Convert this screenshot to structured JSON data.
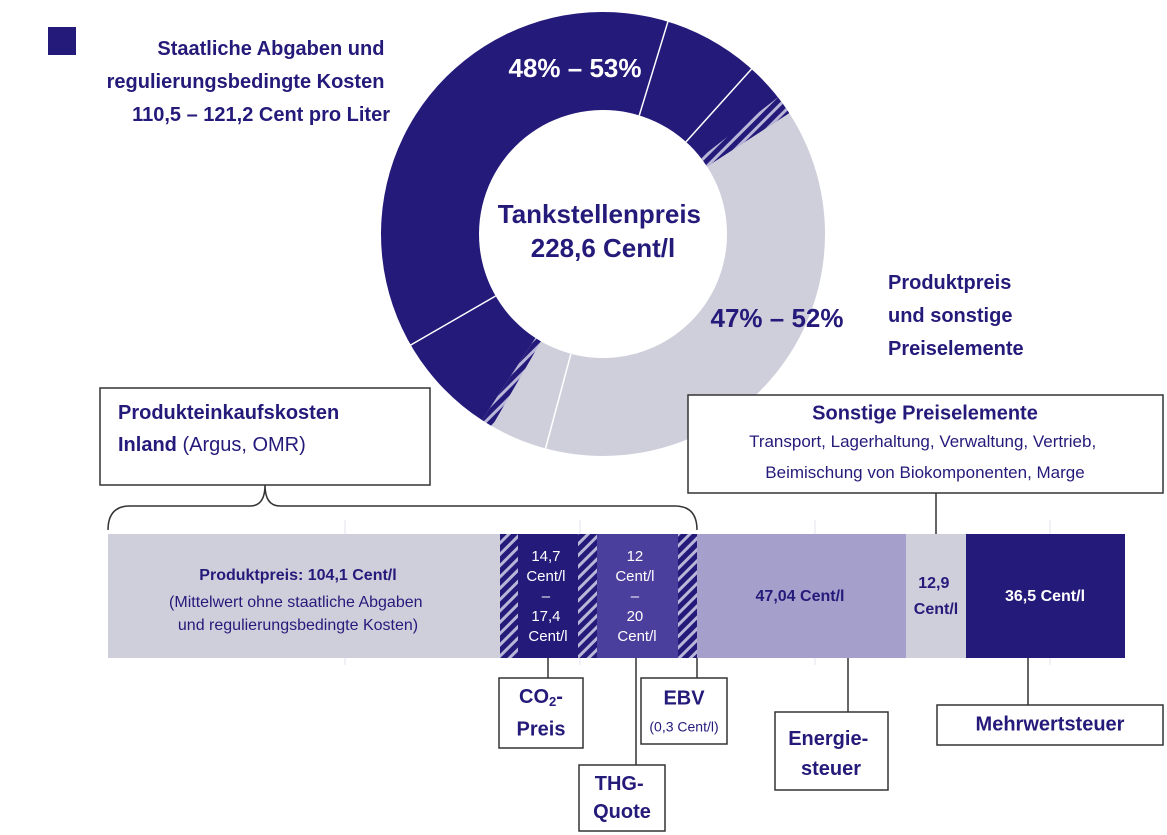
{
  "legend": {
    "lines": [
      "Staatliche Abgaben und",
      "regulierungsbedingte Kosten",
      "110,5 – 121,2 Cent pro Liter"
    ]
  },
  "donut": {
    "dark_label": "48% – 53%",
    "center": [
      "Tankstellenpreis",
      "228,6 Cent/l"
    ],
    "light_label": "47% – 52%",
    "light_caption": [
      "Produktpreis",
      "und sonstige",
      "Preiselemente"
    ]
  },
  "purchase_box": {
    "line1": "Produkteinkaufskosten",
    "bold2": "Inland",
    "rest2": " (Argus, OMR)"
  },
  "other_box": {
    "title": "Sonstige Preiselemente",
    "lines": [
      "Transport, Lagerhaltung, Verwaltung, Vertrieb,",
      "Beimischung von Biokomponenten, Marge"
    ]
  },
  "bar": {
    "product": {
      "title": "Produktpreis: 104,1 Cent/l",
      "lines": [
        "(Mittelwert ohne staatliche Abgaben",
        "und regulierungsbedingte Kosten)"
      ]
    },
    "co2": [
      "14,7",
      "Cent/l",
      "–",
      "17,4",
      "Cent/l"
    ],
    "thg": [
      "12",
      "Cent/l",
      "–",
      "20",
      "Cent/l"
    ],
    "energy": "47,04 Cent/l",
    "other": [
      "12,9",
      "Cent/l"
    ],
    "vat": "36,5 Cent/l"
  },
  "callouts": {
    "co2": {
      "main": "CO",
      "sub": "2",
      "rest": "-",
      "line2": "Preis"
    },
    "ebv": {
      "title": "EBV",
      "note": "(0,3 Cent/l)"
    },
    "thg": [
      "THG-",
      "Quote"
    ],
    "energy": [
      "Energie-",
      "steuer"
    ],
    "vat": "Mehrwertsteuer"
  }
}
